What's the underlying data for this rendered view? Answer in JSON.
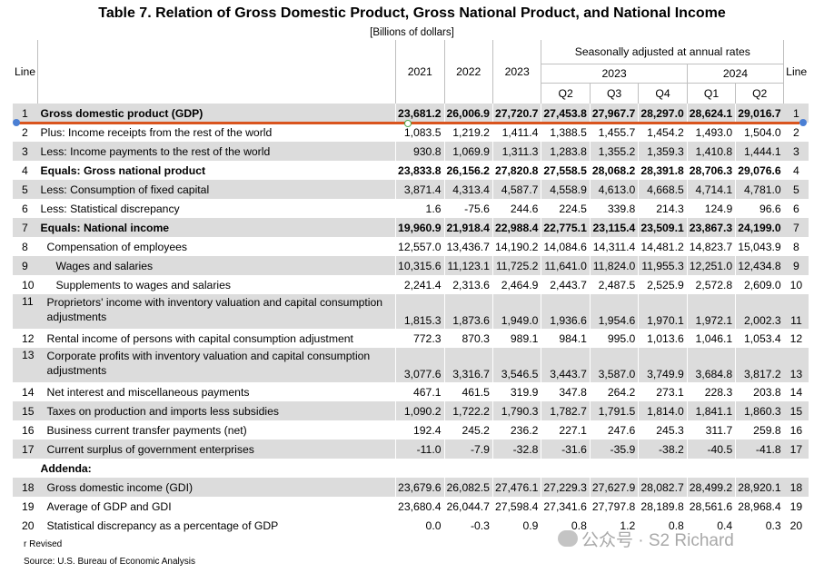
{
  "title": "Table 7. Relation of Gross Domestic Product, Gross National Product, and National Income",
  "subtitle": "[Billions of dollars]",
  "header": {
    "line": "Line",
    "years": [
      "2021",
      "2022",
      "2023"
    ],
    "seasonal": "Seasonally adjusted at annual rates",
    "group_2023": "2023",
    "group_2024": "2024",
    "quarters": [
      "Q2",
      "Q3",
      "Q4",
      "Q1",
      "Q2"
    ],
    "line_right": "Line"
  },
  "rows": [
    {
      "line": "1",
      "label": "Gross domestic product (GDP)",
      "values": [
        "23,681.2",
        "26,006.9",
        "27,720.7",
        "27,453.8",
        "27,967.7",
        "28,297.0",
        "28,624.1",
        "29,016.7"
      ]
    },
    {
      "line": "2",
      "label": "Plus: Income receipts from the rest of the world",
      "values": [
        "1,083.5",
        "1,219.2",
        "1,411.4",
        "1,388.5",
        "1,455.7",
        "1,454.2",
        "1,493.0",
        "1,504.0"
      ]
    },
    {
      "line": "3",
      "label": "Less: Income payments to the rest of the world",
      "values": [
        "930.8",
        "1,069.9",
        "1,311.3",
        "1,283.8",
        "1,355.2",
        "1,359.3",
        "1,410.8",
        "1,444.1"
      ]
    },
    {
      "line": "4",
      "label": "Equals: Gross national product",
      "values": [
        "23,833.8",
        "26,156.2",
        "27,820.8",
        "27,558.5",
        "28,068.2",
        "28,391.8",
        "28,706.3",
        "29,076.6"
      ]
    },
    {
      "line": "5",
      "label": "Less: Consumption of fixed capital",
      "values": [
        "3,871.4",
        "4,313.4",
        "4,587.7",
        "4,558.9",
        "4,613.0",
        "4,668.5",
        "4,714.1",
        "4,781.0"
      ]
    },
    {
      "line": "6",
      "label": "Less: Statistical discrepancy",
      "values": [
        "1.6",
        "-75.6",
        "244.6",
        "224.5",
        "339.8",
        "214.3",
        "124.9",
        "96.6"
      ]
    },
    {
      "line": "7",
      "label": "Equals: National income",
      "values": [
        "19,960.9",
        "21,918.4",
        "22,988.4",
        "22,775.1",
        "23,115.4",
        "23,509.1",
        "23,867.3",
        "24,199.0"
      ]
    },
    {
      "line": "8",
      "label": "Compensation of employees",
      "values": [
        "12,557.0",
        "13,436.7",
        "14,190.2",
        "14,084.6",
        "14,311.4",
        "14,481.2",
        "14,823.7",
        "15,043.9"
      ]
    },
    {
      "line": "9",
      "label": "Wages and salaries",
      "values": [
        "10,315.6",
        "11,123.1",
        "11,725.2",
        "11,641.0",
        "11,824.0",
        "11,955.3",
        "12,251.0",
        "12,434.8"
      ]
    },
    {
      "line": "10",
      "label": "Supplements to wages and salaries",
      "values": [
        "2,241.4",
        "2,313.6",
        "2,464.9",
        "2,443.7",
        "2,487.5",
        "2,525.9",
        "2,572.8",
        "2,609.0"
      ]
    },
    {
      "line": "11",
      "label": "Proprietors' income with inventory valuation and capital consumption adjustments",
      "values": [
        "1,815.3",
        "1,873.6",
        "1,949.0",
        "1,936.6",
        "1,954.6",
        "1,970.1",
        "1,972.1",
        "2,002.3"
      ]
    },
    {
      "line": "12",
      "label": "Rental income of persons with capital consumption adjustment",
      "values": [
        "772.3",
        "870.3",
        "989.1",
        "984.1",
        "995.0",
        "1,013.6",
        "1,046.1",
        "1,053.4"
      ]
    },
    {
      "line": "13",
      "label": "Corporate profits with inventory valuation and capital consumption adjustments",
      "values": [
        "3,077.6",
        "3,316.7",
        "3,546.5",
        "3,443.7",
        "3,587.0",
        "3,749.9",
        "3,684.8",
        "3,817.2"
      ]
    },
    {
      "line": "14",
      "label": "Net interest and miscellaneous payments",
      "values": [
        "467.1",
        "461.5",
        "319.9",
        "347.8",
        "264.2",
        "273.1",
        "228.3",
        "203.8"
      ]
    },
    {
      "line": "15",
      "label": "Taxes on production and imports less subsidies",
      "values": [
        "1,090.2",
        "1,722.2",
        "1,790.3",
        "1,782.7",
        "1,791.5",
        "1,814.0",
        "1,841.1",
        "1,860.3"
      ]
    },
    {
      "line": "16",
      "label": "Business current transfer payments (net)",
      "values": [
        "192.4",
        "245.2",
        "236.2",
        "227.1",
        "247.6",
        "245.3",
        "311.7",
        "259.8"
      ]
    },
    {
      "line": "17",
      "label": "Current surplus of government enterprises",
      "values": [
        "-11.0",
        "-7.9",
        "-32.8",
        "-31.6",
        "-35.9",
        "-38.2",
        "-40.5",
        "-41.8"
      ]
    },
    {
      "line": "",
      "label": "Addenda:",
      "values": [
        "",
        "",
        "",
        "",
        "",
        "",
        "",
        ""
      ]
    },
    {
      "line": "18",
      "label": "Gross domestic income (GDI)",
      "values": [
        "23,679.6",
        "26,082.5",
        "27,476.1",
        "27,229.3",
        "27,627.9",
        "28,082.7",
        "28,499.2",
        "28,920.1"
      ]
    },
    {
      "line": "19",
      "label": "Average of GDP and GDI",
      "values": [
        "23,680.4",
        "26,044.7",
        "27,598.4",
        "27,341.6",
        "27,797.8",
        "28,189.8",
        "28,561.6",
        "28,968.4"
      ]
    },
    {
      "line": "20",
      "label": "Statistical discrepancy as a percentage of GDP",
      "values": [
        "0.0",
        "-0.3",
        "0.9",
        "0.8",
        "1.2",
        "0.8",
        "0.4",
        "0.3"
      ]
    }
  ],
  "footnote_revised": "r Revised",
  "source": "Source: U.S. Bureau of Economic Analysis",
  "watermark": "公众号 · S2 Richard"
}
